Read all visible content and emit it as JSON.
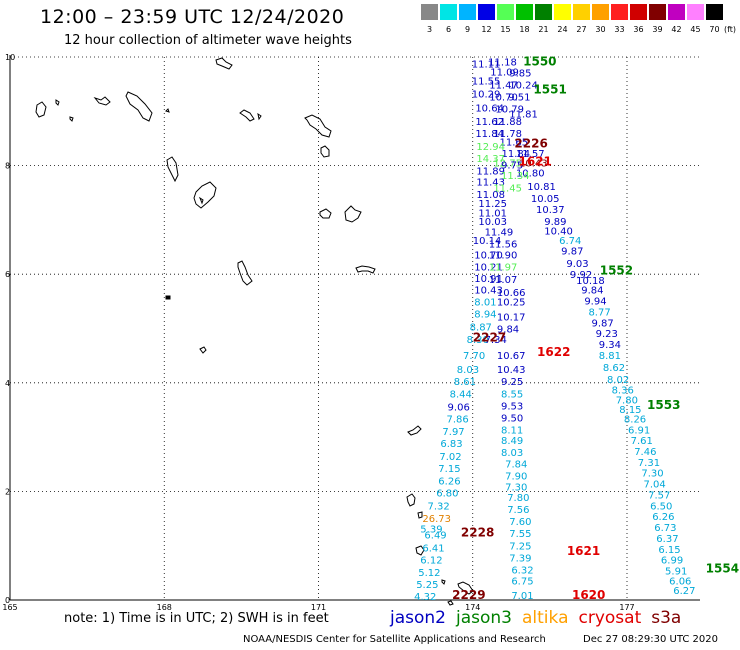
{
  "header": {
    "title": "12:00 – 23:59 UTC 12/24/2020",
    "subtitle": "12 hour collection of altimeter wave heights"
  },
  "color_scale": {
    "unit": "(ft)",
    "swatches": [
      {
        "label": "3",
        "color": "#888888"
      },
      {
        "label": "6",
        "color": "#00e5e5"
      },
      {
        "label": "9",
        "color": "#00b4ff"
      },
      {
        "label": "12",
        "color": "#0000e6"
      },
      {
        "label": "15",
        "color": "#55ff55"
      },
      {
        "label": "18",
        "color": "#00c000"
      },
      {
        "label": "21",
        "color": "#008000"
      },
      {
        "label": "24",
        "color": "#ffff00"
      },
      {
        "label": "27",
        "color": "#ffd000"
      },
      {
        "label": "30",
        "color": "#ffa000"
      },
      {
        "label": "33",
        "color": "#ff2020"
      },
      {
        "label": "36",
        "color": "#d00000"
      },
      {
        "label": "39",
        "color": "#800000"
      },
      {
        "label": "42",
        "color": "#c000c0"
      },
      {
        "label": "45",
        "color": "#ff80ff"
      },
      {
        "label": "70",
        "color": "#000000"
      }
    ]
  },
  "axes": {
    "x_ticks": [
      {
        "lon": 165,
        "label": "165"
      },
      {
        "lon": 168,
        "label": "168"
      },
      {
        "lon": 171,
        "label": "171"
      },
      {
        "lon": 174,
        "label": "174"
      },
      {
        "lon": 177,
        "label": "177"
      }
    ],
    "y_ticks": [
      {
        "lat": 0,
        "label": "0"
      },
      {
        "lat": 2,
        "label": "2"
      },
      {
        "lat": 4,
        "label": "4"
      },
      {
        "lat": 6,
        "label": "6"
      },
      {
        "lat": 8,
        "label": "8"
      },
      {
        "lat": 10,
        "label": "10"
      }
    ],
    "grid": "dotted"
  },
  "pass_labels": [
    {
      "text": "1550",
      "lon": 174.98,
      "lat": 9.84,
      "color": "#008000"
    },
    {
      "text": "1551",
      "lon": 175.18,
      "lat": 9.33,
      "color": "#008000"
    },
    {
      "text": "2226",
      "lon": 174.81,
      "lat": 8.33,
      "color": "#800000"
    },
    {
      "text": "1621",
      "lon": 174.89,
      "lat": 8.0,
      "color": "#e00000"
    },
    {
      "text": "1552",
      "lon": 176.47,
      "lat": 5.99,
      "color": "#008000"
    },
    {
      "text": "2227",
      "lon": 174.0,
      "lat": 4.76,
      "color": "#800000"
    },
    {
      "text": "1622",
      "lon": 175.25,
      "lat": 4.49,
      "color": "#e00000"
    },
    {
      "text": "1553",
      "lon": 177.39,
      "lat": 3.52,
      "color": "#008000"
    },
    {
      "text": "2228",
      "lon": 173.77,
      "lat": 1.17,
      "color": "#800000"
    },
    {
      "text": "1621",
      "lon": 175.83,
      "lat": 0.83,
      "color": "#e00000"
    },
    {
      "text": "1554",
      "lon": 178.53,
      "lat": 0.51,
      "color": "#008000"
    },
    {
      "text": "2229",
      "lon": 173.6,
      "lat": 0.02,
      "color": "#800000"
    },
    {
      "text": "1620",
      "lon": 175.93,
      "lat": 0.02,
      "color": "#e00000"
    }
  ],
  "swh_points": [
    {
      "v": "11.11",
      "lon": 173.98,
      "lat": 9.81,
      "c": "#0000c0"
    },
    {
      "v": "11.18",
      "lon": 174.3,
      "lat": 9.84,
      "c": "#0000c0"
    },
    {
      "v": "11.09",
      "lon": 174.34,
      "lat": 9.66,
      "c": "#0000c0"
    },
    {
      "v": "9.85",
      "lon": 174.71,
      "lat": 9.64,
      "c": "#0000c0"
    },
    {
      "v": "11.55",
      "lon": 173.98,
      "lat": 9.49,
      "c": "#0000c0"
    },
    {
      "v": "11.47",
      "lon": 174.32,
      "lat": 9.42,
      "c": "#0000c0"
    },
    {
      "v": "10.24",
      "lon": 174.71,
      "lat": 9.42,
      "c": "#0000c0"
    },
    {
      "v": "10.29",
      "lon": 173.98,
      "lat": 9.25,
      "c": "#0000c0"
    },
    {
      "v": "10.70",
      "lon": 174.32,
      "lat": 9.2,
      "c": "#0000c0"
    },
    {
      "v": "9.51",
      "lon": 174.69,
      "lat": 9.2,
      "c": "#0000c0"
    },
    {
      "v": "10.64",
      "lon": 174.05,
      "lat": 9.0,
      "c": "#0000c0"
    },
    {
      "v": "10.79",
      "lon": 174.44,
      "lat": 8.98,
      "c": "#0000c0"
    },
    {
      "v": "11.81",
      "lon": 174.71,
      "lat": 8.89,
      "c": "#0000c0"
    },
    {
      "v": "11.62",
      "lon": 174.05,
      "lat": 8.75,
      "c": "#0000c0"
    },
    {
      "v": "11.88",
      "lon": 174.4,
      "lat": 8.75,
      "c": "#0000c0"
    },
    {
      "v": "11.84",
      "lon": 174.05,
      "lat": 8.53,
      "c": "#0000c0"
    },
    {
      "v": "11.78",
      "lon": 174.4,
      "lat": 8.53,
      "c": "#0000c0"
    },
    {
      "v": "11.65",
      "lon": 174.52,
      "lat": 8.37,
      "c": "#0000c0"
    },
    {
      "v": "12.94",
      "lon": 174.07,
      "lat": 8.29,
      "c": "#55ee55"
    },
    {
      "v": "11.84",
      "lon": 174.56,
      "lat": 8.16,
      "c": "#0000c0"
    },
    {
      "v": "11.57",
      "lon": 174.84,
      "lat": 8.16,
      "c": "#0000c0"
    },
    {
      "v": "14.37",
      "lon": 174.07,
      "lat": 8.07,
      "c": "#55ee55"
    },
    {
      "v": "12.75",
      "lon": 174.4,
      "lat": 7.98,
      "c": "#55ee55"
    },
    {
      "v": "10.43",
      "lon": 174.9,
      "lat": 7.98,
      "c": "#800000"
    },
    {
      "v": "9.75",
      "lon": 174.55,
      "lat": 7.95,
      "c": "#0000c0"
    },
    {
      "v": "11.89",
      "lon": 174.07,
      "lat": 7.84,
      "c": "#0000c0"
    },
    {
      "v": "10.80",
      "lon": 174.84,
      "lat": 7.8,
      "c": "#0000c0"
    },
    {
      "v": "11.34",
      "lon": 174.55,
      "lat": 7.75,
      "c": "#55ee55"
    },
    {
      "v": "11.43",
      "lon": 174.07,
      "lat": 7.63,
      "c": "#0000c0"
    },
    {
      "v": "10.81",
      "lon": 175.06,
      "lat": 7.55,
      "c": "#0000c0"
    },
    {
      "v": "11.45",
      "lon": 174.4,
      "lat": 7.52,
      "c": "#55ee55"
    },
    {
      "v": "11.08",
      "lon": 174.07,
      "lat": 7.4,
      "c": "#0000c0"
    },
    {
      "v": "10.05",
      "lon": 175.13,
      "lat": 7.33,
      "c": "#0000c0"
    },
    {
      "v": "11.25",
      "lon": 174.11,
      "lat": 7.24,
      "c": "#0000c0"
    },
    {
      "v": "10.37",
      "lon": 175.23,
      "lat": 7.13,
      "c": "#0000c0"
    },
    {
      "v": "11.01",
      "lon": 174.11,
      "lat": 7.06,
      "c": "#0000c0"
    },
    {
      "v": "10.03",
      "lon": 174.11,
      "lat": 6.91,
      "c": "#0000c0"
    },
    {
      "v": "9.89",
      "lon": 175.39,
      "lat": 6.91,
      "c": "#0000c0"
    },
    {
      "v": "11.49",
      "lon": 174.23,
      "lat": 6.71,
      "c": "#0000c0"
    },
    {
      "v": "10.40",
      "lon": 175.39,
      "lat": 6.73,
      "c": "#0000c0"
    },
    {
      "v": "10.14",
      "lon": 174.0,
      "lat": 6.56,
      "c": "#0000c0"
    },
    {
      "v": "6.74",
      "lon": 175.68,
      "lat": 6.56,
      "c": "#00a8d8"
    },
    {
      "v": "11.56",
      "lon": 174.31,
      "lat": 6.49,
      "c": "#0000c0"
    },
    {
      "v": "10.70",
      "lon": 174.03,
      "lat": 6.29,
      "c": "#0000c0"
    },
    {
      "v": "9.87",
      "lon": 175.72,
      "lat": 6.36,
      "c": "#0000c0"
    },
    {
      "v": "11.90",
      "lon": 174.31,
      "lat": 6.29,
      "c": "#0000c0"
    },
    {
      "v": "10.21",
      "lon": 174.03,
      "lat": 6.07,
      "c": "#0000c0"
    },
    {
      "v": "9.03",
      "lon": 175.82,
      "lat": 6.13,
      "c": "#0000c0"
    },
    {
      "v": "11.97",
      "lon": 174.31,
      "lat": 6.07,
      "c": "#55ee55"
    },
    {
      "v": "9.92",
      "lon": 175.89,
      "lat": 5.93,
      "c": "#0000c0"
    },
    {
      "v": "10.91",
      "lon": 174.03,
      "lat": 5.86,
      "c": "#0000c0"
    },
    {
      "v": "11.07",
      "lon": 174.31,
      "lat": 5.84,
      "c": "#0000c0"
    },
    {
      "v": "10.18",
      "lon": 176.01,
      "lat": 5.82,
      "c": "#0000c0"
    },
    {
      "v": "10.43",
      "lon": 174.03,
      "lat": 5.64,
      "c": "#0000c0"
    },
    {
      "v": "10.66",
      "lon": 174.47,
      "lat": 5.6,
      "c": "#0000c0"
    },
    {
      "v": "9.84",
      "lon": 176.11,
      "lat": 5.64,
      "c": "#0000c0"
    },
    {
      "v": "8.01",
      "lon": 174.03,
      "lat": 5.42,
      "c": "#00a8d8"
    },
    {
      "v": "10.25",
      "lon": 174.47,
      "lat": 5.42,
      "c": "#0000c0"
    },
    {
      "v": "9.94",
      "lon": 176.17,
      "lat": 5.44,
      "c": "#0000c0"
    },
    {
      "v": "8.94",
      "lon": 174.03,
      "lat": 5.2,
      "c": "#00a8d8"
    },
    {
      "v": "10.17",
      "lon": 174.47,
      "lat": 5.15,
      "c": "#0000c0"
    },
    {
      "v": "8.77",
      "lon": 176.25,
      "lat": 5.24,
      "c": "#00a8d8"
    },
    {
      "v": "9.87",
      "lon": 176.31,
      "lat": 5.04,
      "c": "#0000c0"
    },
    {
      "v": "8.87",
      "lon": 173.94,
      "lat": 4.96,
      "c": "#00a8d8"
    },
    {
      "v": "9.84",
      "lon": 174.47,
      "lat": 4.93,
      "c": "#0000c0"
    },
    {
      "v": "9.23",
      "lon": 176.39,
      "lat": 4.84,
      "c": "#0000c0"
    },
    {
      "v": "8.30",
      "lon": 173.88,
      "lat": 4.73,
      "c": "#00a8d8"
    },
    {
      "v": "7.34",
      "lon": 174.23,
      "lat": 4.73,
      "c": "#0000c0"
    },
    {
      "v": "9.34",
      "lon": 176.45,
      "lat": 4.64,
      "c": "#0000c0"
    },
    {
      "v": "7.70",
      "lon": 173.81,
      "lat": 4.44,
      "c": "#00a8d8"
    },
    {
      "v": "10.67",
      "lon": 174.47,
      "lat": 4.44,
      "c": "#0000c0"
    },
    {
      "v": "8.81",
      "lon": 176.45,
      "lat": 4.44,
      "c": "#00a8d8"
    },
    {
      "v": "8.03",
      "lon": 173.69,
      "lat": 4.18,
      "c": "#00a8d8"
    },
    {
      "v": "10.43",
      "lon": 174.47,
      "lat": 4.18,
      "c": "#0000c0"
    },
    {
      "v": "8.62",
      "lon": 176.53,
      "lat": 4.22,
      "c": "#00a8d8"
    },
    {
      "v": "8.02",
      "lon": 176.61,
      "lat": 4.0,
      "c": "#00a8d8"
    },
    {
      "v": "8.61",
      "lon": 173.63,
      "lat": 3.96,
      "c": "#00a8d8"
    },
    {
      "v": "9.25",
      "lon": 174.55,
      "lat": 3.96,
      "c": "#0000c0"
    },
    {
      "v": "8.36",
      "lon": 176.7,
      "lat": 3.8,
      "c": "#00a8d8"
    },
    {
      "v": "8.44",
      "lon": 173.55,
      "lat": 3.73,
      "c": "#00a8d8"
    },
    {
      "v": "8.55",
      "lon": 174.55,
      "lat": 3.73,
      "c": "#00a8d8"
    },
    {
      "v": "7.80",
      "lon": 176.78,
      "lat": 3.62,
      "c": "#00a8d8"
    },
    {
      "v": "9.06",
      "lon": 173.51,
      "lat": 3.49,
      "c": "#0000c0"
    },
    {
      "v": "9.53",
      "lon": 174.55,
      "lat": 3.51,
      "c": "#0000c0"
    },
    {
      "v": "8.15",
      "lon": 176.85,
      "lat": 3.44,
      "c": "#00a8d8"
    },
    {
      "v": "7.86",
      "lon": 173.49,
      "lat": 3.27,
      "c": "#00a8d8"
    },
    {
      "v": "9.50",
      "lon": 174.55,
      "lat": 3.29,
      "c": "#0000c0"
    },
    {
      "v": "8.26",
      "lon": 176.94,
      "lat": 3.27,
      "c": "#00a8d8"
    },
    {
      "v": "7.97",
      "lon": 173.41,
      "lat": 3.04,
      "c": "#00a8d8"
    },
    {
      "v": "8.11",
      "lon": 174.55,
      "lat": 3.07,
      "c": "#00a8d8"
    },
    {
      "v": "6.91",
      "lon": 177.02,
      "lat": 3.07,
      "c": "#00a8d8"
    },
    {
      "v": "6.83",
      "lon": 173.37,
      "lat": 2.82,
      "c": "#00a8d8"
    },
    {
      "v": "8.49",
      "lon": 174.55,
      "lat": 2.87,
      "c": "#00a8d8"
    },
    {
      "v": "7.61",
      "lon": 177.07,
      "lat": 2.87,
      "c": "#00a8d8"
    },
    {
      "v": "8.03",
      "lon": 174.55,
      "lat": 2.65,
      "c": "#00a8d8"
    },
    {
      "v": "7.46",
      "lon": 177.14,
      "lat": 2.67,
      "c": "#00a8d8"
    },
    {
      "v": "7.02",
      "lon": 173.35,
      "lat": 2.58,
      "c": "#00a8d8"
    },
    {
      "v": "7.84",
      "lon": 174.63,
      "lat": 2.44,
      "c": "#00a8d8"
    },
    {
      "v": "7.31",
      "lon": 177.21,
      "lat": 2.47,
      "c": "#00a8d8"
    },
    {
      "v": "7.15",
      "lon": 173.33,
      "lat": 2.36,
      "c": "#00a8d8"
    },
    {
      "v": "7.90",
      "lon": 174.63,
      "lat": 2.22,
      "c": "#00a8d8"
    },
    {
      "v": "7.30",
      "lon": 177.28,
      "lat": 2.27,
      "c": "#00a8d8"
    },
    {
      "v": "6.26",
      "lon": 173.33,
      "lat": 2.13,
      "c": "#00a8d8"
    },
    {
      "v": "7.30",
      "lon": 174.63,
      "lat": 2.02,
      "c": "#00a8d8"
    },
    {
      "v": "7.04",
      "lon": 177.32,
      "lat": 2.07,
      "c": "#00a8d8"
    },
    {
      "v": "6.80",
      "lon": 173.29,
      "lat": 1.91,
      "c": "#00a8d8"
    },
    {
      "v": "7.57",
      "lon": 177.41,
      "lat": 1.87,
      "c": "#00a8d8"
    },
    {
      "v": "7.80",
      "lon": 174.67,
      "lat": 1.82,
      "c": "#00a8d8"
    },
    {
      "v": "7.32",
      "lon": 173.12,
      "lat": 1.67,
      "c": "#00a8d8"
    },
    {
      "v": "6.50",
      "lon": 177.45,
      "lat": 1.67,
      "c": "#00a8d8"
    },
    {
      "v": "7.56",
      "lon": 174.67,
      "lat": 1.6,
      "c": "#00a8d8"
    },
    {
      "v": "26.73",
      "lon": 173.02,
      "lat": 1.44,
      "c": "#e08000"
    },
    {
      "v": "6.26",
      "lon": 177.49,
      "lat": 1.47,
      "c": "#00a8d8"
    },
    {
      "v": "7.60",
      "lon": 174.71,
      "lat": 1.38,
      "c": "#00a8d8"
    },
    {
      "v": "5.39",
      "lon": 172.98,
      "lat": 1.24,
      "c": "#00a8d8"
    },
    {
      "v": "6.73",
      "lon": 177.53,
      "lat": 1.27,
      "c": "#00a8d8"
    },
    {
      "v": "6.49",
      "lon": 173.06,
      "lat": 1.13,
      "c": "#00a8d8"
    },
    {
      "v": "7.55",
      "lon": 174.71,
      "lat": 1.16,
      "c": "#00a8d8"
    },
    {
      "v": "6.37",
      "lon": 177.57,
      "lat": 1.07,
      "c": "#00a8d8"
    },
    {
      "v": "6.41",
      "lon": 173.02,
      "lat": 0.89,
      "c": "#00a8d8"
    },
    {
      "v": "7.25",
      "lon": 174.71,
      "lat": 0.93,
      "c": "#00a8d8"
    },
    {
      "v": "6.15",
      "lon": 177.61,
      "lat": 0.87,
      "c": "#00a8d8"
    },
    {
      "v": "6.12",
      "lon": 172.98,
      "lat": 0.67,
      "c": "#00a8d8"
    },
    {
      "v": "7.39",
      "lon": 174.71,
      "lat": 0.71,
      "c": "#00a8d8"
    },
    {
      "v": "6.99",
      "lon": 177.66,
      "lat": 0.67,
      "c": "#00a8d8"
    },
    {
      "v": "5.12",
      "lon": 172.94,
      "lat": 0.44,
      "c": "#00a8d8"
    },
    {
      "v": "6.32",
      "lon": 174.75,
      "lat": 0.49,
      "c": "#00a8d8"
    },
    {
      "v": "5.91",
      "lon": 177.74,
      "lat": 0.47,
      "c": "#00a8d8"
    },
    {
      "v": "5.25",
      "lon": 172.9,
      "lat": 0.22,
      "c": "#00a8d8"
    },
    {
      "v": "6.75",
      "lon": 174.75,
      "lat": 0.29,
      "c": "#00a8d8"
    },
    {
      "v": "6.06",
      "lon": 177.82,
      "lat": 0.29,
      "c": "#00a8d8"
    },
    {
      "v": "6.27",
      "lon": 177.9,
      "lat": 0.11,
      "c": "#00a8d8"
    },
    {
      "v": "4.32",
      "lon": 172.86,
      "lat": 0.0,
      "c": "#00a8d8"
    },
    {
      "v": "7.01",
      "lon": 174.75,
      "lat": 0.02,
      "c": "#00a8d8"
    }
  ],
  "note": "note: 1) Time is in UTC; 2) SWH is in feet",
  "satellites": [
    {
      "name": "jason2",
      "color": "#0000c0"
    },
    {
      "name": "jason3",
      "color": "#008000"
    },
    {
      "name": "altika",
      "color": "#ffa000"
    },
    {
      "name": "cryosat",
      "color": "#e00000"
    },
    {
      "name": "s3a",
      "color": "#800000"
    }
  ],
  "footer": {
    "credit": "NOAA/NESDIS Center for Satellite Applications and Research",
    "timestamp": "Dec 27 08:29:30 UTC 2020"
  }
}
